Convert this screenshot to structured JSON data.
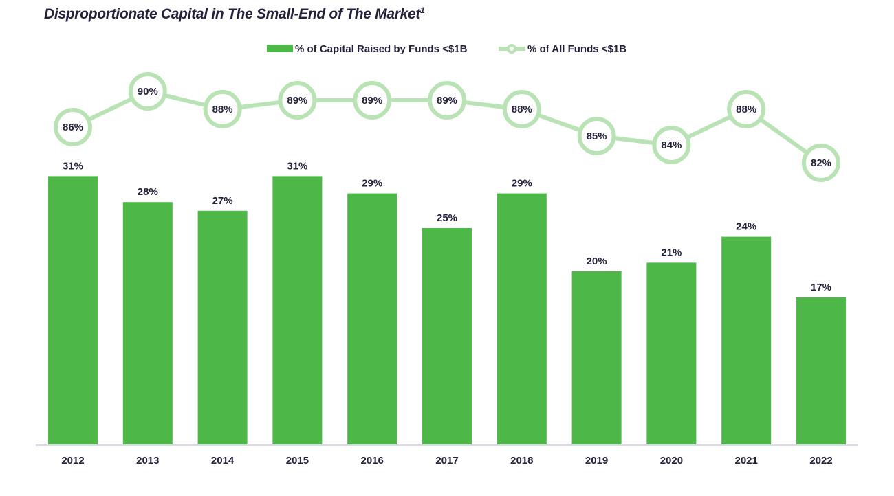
{
  "chart_data": {
    "type": "bar+line",
    "title": "Disproportionate Capital in The Small-End of The Market",
    "title_footnote": "1",
    "categories": [
      "2012",
      "2013",
      "2014",
      "2015",
      "2016",
      "2017",
      "2018",
      "2019",
      "2020",
      "2021",
      "2022"
    ],
    "series": [
      {
        "name": "% of Capital Raised by Funds <$1B",
        "type": "bar",
        "color": "#4db848",
        "values": [
          31,
          28,
          27,
          31,
          29,
          25,
          29,
          20,
          21,
          24,
          17
        ]
      },
      {
        "name": "% of All Funds <$1B",
        "type": "line",
        "color": "#b9e3b5",
        "values": [
          86,
          90,
          88,
          89,
          89,
          89,
          88,
          85,
          84,
          88,
          82
        ]
      }
    ],
    "legend_position": "top-center",
    "grid": false,
    "xlabel": "",
    "ylabel": ""
  }
}
